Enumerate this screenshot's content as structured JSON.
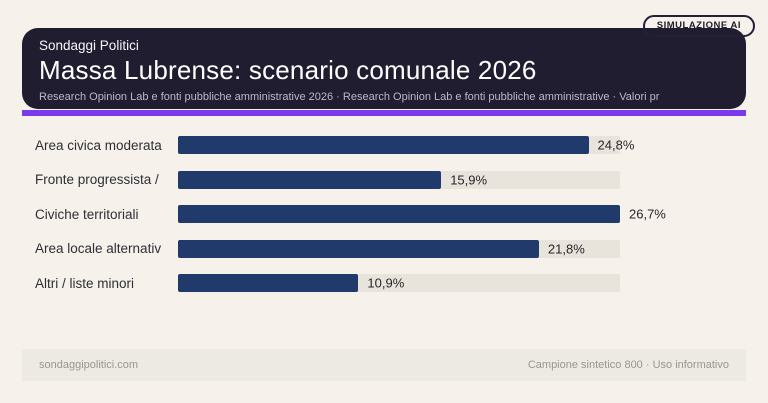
{
  "badge": {
    "label": "SIMULAZIONE AI"
  },
  "header": {
    "kicker": "Sondaggi Politici",
    "title": "Massa Lubrense: scenario comunale 2026",
    "subtitle": "Research Opinion Lab e fonti pubbliche amministrative 2026 · Research Opinion Lab e fonti pubbliche amministrative · Valori pr"
  },
  "chart_data": {
    "type": "bar",
    "orientation": "horizontal",
    "title": "Massa Lubrense: scenario comunale 2026",
    "categories": [
      "Area civica moderata",
      "Fronte progressista /",
      "Civiche territoriali",
      "Area locale alternativ",
      "Altri / liste minori"
    ],
    "values": [
      24.8,
      15.9,
      26.7,
      21.8,
      10.9
    ],
    "value_labels": [
      "24,8%",
      "15,9%",
      "26,7%",
      "21,8%",
      "10,9%"
    ],
    "unit": "%",
    "scale_max": 26.7,
    "legend": false,
    "gridlines": false,
    "bar_color": "#1f3a6b",
    "track_color": "#e9e4db"
  },
  "footer": {
    "left": "sondaggipolitici.com",
    "right": "Campione sintetico 800 · Uso informativo"
  },
  "colors": {
    "page_bg": "#f6f1ea",
    "card_bg": "#201d31",
    "accent": "#7c3aed",
    "bar": "#1f3a6b",
    "track": "#e9e4db",
    "footer_bg": "#edeae3"
  }
}
